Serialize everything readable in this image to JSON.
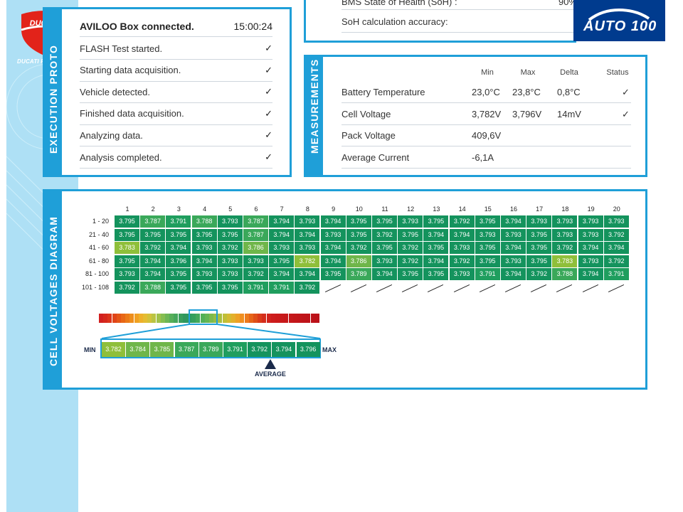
{
  "logo": {
    "brand": "DUCATI",
    "label": "DUCATI PRESO"
  },
  "top_partial": {
    "row_1": "BMS State of Health (SoH) :",
    "row_1_value": "90%",
    "row_2": "SoH calculation accuracy:"
  },
  "brand_badge": {
    "text": "AUTO 100"
  },
  "execution": {
    "side_title": "EXECUTION PROTO",
    "header": "AVILOO Box connected.",
    "time": "15:00:24",
    "steps": [
      {
        "label": "FLASH Test started.",
        "mark": "✓"
      },
      {
        "label": "Starting data acquisition.",
        "mark": "✓"
      },
      {
        "label": "Vehicle detected.",
        "mark": "✓"
      },
      {
        "label": "Finished data acquisition.",
        "mark": "✓"
      },
      {
        "label": "Analyzing data.",
        "mark": "✓"
      },
      {
        "label": "Analysis completed.",
        "mark": "✓"
      }
    ]
  },
  "measurements": {
    "side_title": "MEASUREMENTS",
    "headers": [
      "Min",
      "Max",
      "Delta",
      "Status"
    ],
    "rows": [
      {
        "name": "Battery Temperature",
        "min": "23,0°C",
        "max": "23,8°C",
        "delta": "0,8°C",
        "status": "✓"
      },
      {
        "name": "Cell Voltage",
        "min": "3,782V",
        "max": "3,796V",
        "delta": "14mV",
        "status": "✓"
      },
      {
        "name": "Pack Voltage",
        "min": "409,6V",
        "max": "",
        "delta": "",
        "status": ""
      },
      {
        "name": "Average Current",
        "min": "-6,1A",
        "max": "",
        "delta": "",
        "status": ""
      }
    ]
  },
  "cells": {
    "side_title": "CELL VOLTAGES DIAGRAM",
    "columns": [
      "1",
      "2",
      "3",
      "4",
      "5",
      "6",
      "7",
      "8",
      "9",
      "10",
      "11",
      "12",
      "13",
      "14",
      "15",
      "16",
      "17",
      "18",
      "19",
      "20"
    ],
    "rows": [
      {
        "label": "1 - 20",
        "values": [
          "3.795",
          "3.787",
          "3.791",
          "3.788",
          "3.793",
          "3.787",
          "3.794",
          "3.793",
          "3.794",
          "3.795",
          "3.795",
          "3.793",
          "3.795",
          "3.792",
          "3.795",
          "3.794",
          "3.793",
          "3.793",
          "3.793",
          "3.793"
        ]
      },
      {
        "label": "21 - 40",
        "values": [
          "3.795",
          "3.795",
          "3.795",
          "3.795",
          "3.795",
          "3.787",
          "3.794",
          "3.794",
          "3.793",
          "3.795",
          "3.792",
          "3.795",
          "3.794",
          "3.794",
          "3.793",
          "3.793",
          "3.795",
          "3.793",
          "3.793",
          "3.792"
        ]
      },
      {
        "label": "41 - 60",
        "values": [
          "3.783",
          "3.792",
          "3.794",
          "3.793",
          "3.792",
          "3.786",
          "3.793",
          "3.793",
          "3.794",
          "3.792",
          "3.795",
          "3.792",
          "3.795",
          "3.793",
          "3.795",
          "3.794",
          "3.795",
          "3.792",
          "3.794",
          "3.794"
        ]
      },
      {
        "label": "61 - 80",
        "values": [
          "3.795",
          "3.794",
          "3.796",
          "3.794",
          "3.793",
          "3.793",
          "3.795",
          "3.782",
          "3.794",
          "3.786",
          "3.793",
          "3.792",
          "3.794",
          "3.792",
          "3.795",
          "3.793",
          "3.795",
          "3.783",
          "3.793",
          "3.792"
        ]
      },
      {
        "label": "81 - 100",
        "values": [
          "3.793",
          "3.794",
          "3.795",
          "3.793",
          "3.793",
          "3.792",
          "3.794",
          "3.794",
          "3.795",
          "3.789",
          "3.794",
          "3.795",
          "3.795",
          "3.793",
          "3.791",
          "3.794",
          "3.792",
          "3.788",
          "3.794",
          "3.791"
        ]
      },
      {
        "label": "101 - 108",
        "values": [
          "3.792",
          "3.788",
          "3.795",
          "3.795",
          "3.795",
          "3.791",
          "3.791",
          "3.792"
        ]
      }
    ],
    "scale": {
      "min_label": "MIN",
      "max_label": "MAX",
      "average_label": "AVERAGE",
      "values": [
        "3.782",
        "3.784",
        "3.785",
        "3.787",
        "3.789",
        "3.791",
        "3.792",
        "3.794",
        "3.796"
      ]
    }
  }
}
